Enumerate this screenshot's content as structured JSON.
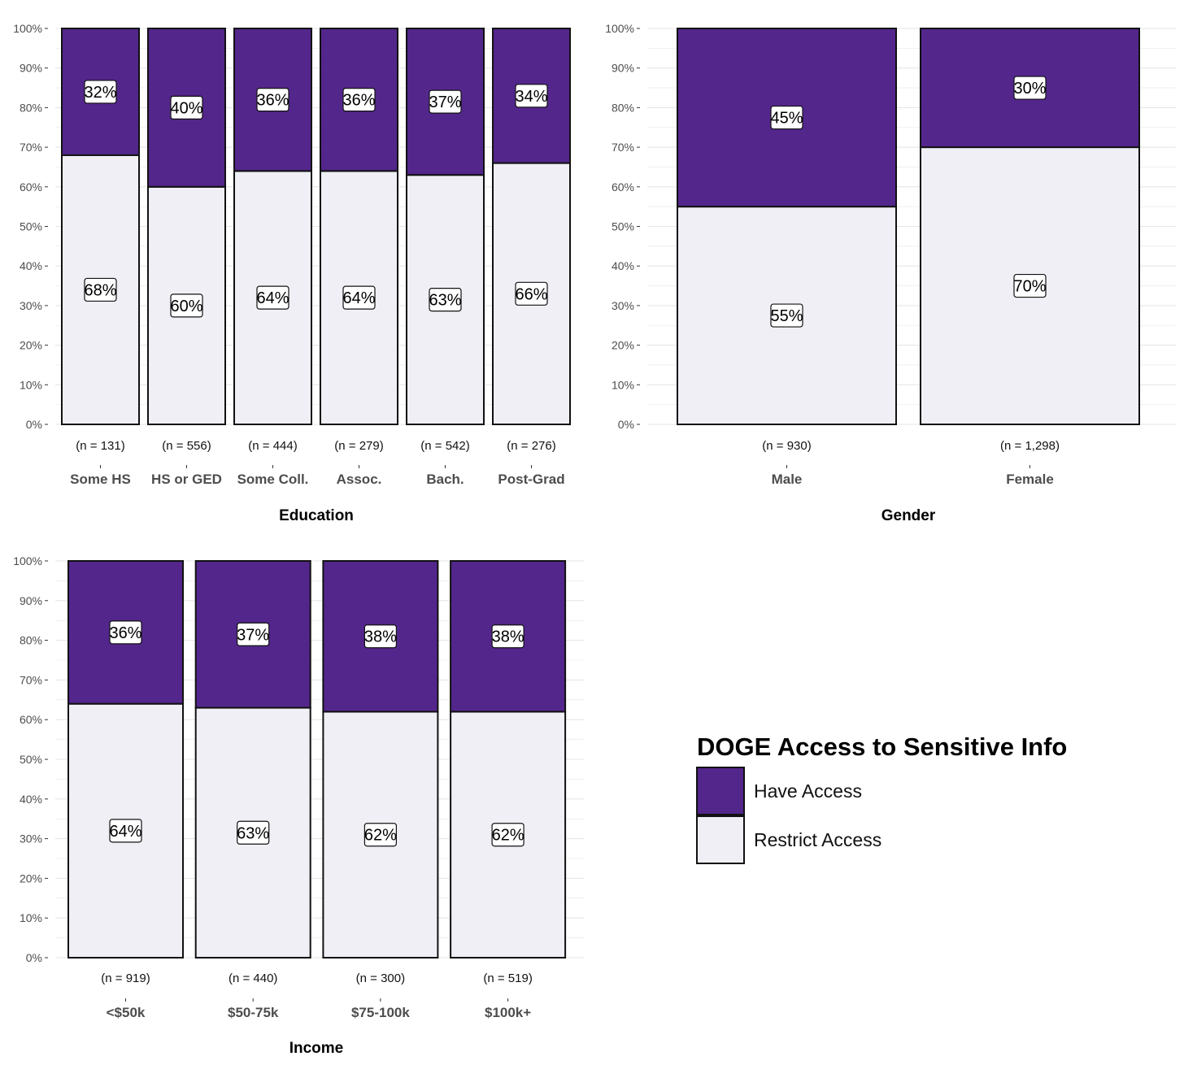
{
  "colors": {
    "have": "#53268c",
    "restrict": "#efeff5",
    "grid": "#e6e6e6",
    "border": "#111111"
  },
  "legend": {
    "title": "DOGE Access to Sensitive Info",
    "items": [
      {
        "label": "Have Access",
        "color": "#53268c"
      },
      {
        "label": "Restrict Access",
        "color": "#efeff5"
      }
    ]
  },
  "chart_data": [
    {
      "type": "bar",
      "stacked": true,
      "xlabel": "Education",
      "ylabel": "",
      "ylim": [
        0,
        100
      ],
      "yticks": [
        "0%",
        "10%",
        "20%",
        "30%",
        "40%",
        "50%",
        "60%",
        "70%",
        "80%",
        "90%",
        "100%"
      ],
      "categories": [
        "Some HS",
        "HS or GED",
        "Some Coll.",
        "Assoc.",
        "Bach.",
        "Post-Grad"
      ],
      "n_labels": [
        "(n = 131)",
        "(n = 556)",
        "(n = 444)",
        "(n = 279)",
        "(n = 542)",
        "(n = 276)"
      ],
      "series": [
        {
          "name": "Restrict Access",
          "values": [
            68,
            60,
            64,
            64,
            63,
            66
          ],
          "labels": [
            "68%",
            "60%",
            "64%",
            "64%",
            "63%",
            "66%"
          ]
        },
        {
          "name": "Have Access",
          "values": [
            32,
            40,
            36,
            36,
            37,
            34
          ],
          "labels": [
            "32%",
            "40%",
            "36%",
            "36%",
            "37%",
            "34%"
          ]
        }
      ]
    },
    {
      "type": "bar",
      "stacked": true,
      "xlabel": "Gender",
      "ylabel": "",
      "ylim": [
        0,
        100
      ],
      "yticks": [
        "0%",
        "10%",
        "20%",
        "30%",
        "40%",
        "50%",
        "60%",
        "70%",
        "80%",
        "90%",
        "100%"
      ],
      "categories": [
        "Male",
        "Female"
      ],
      "n_labels": [
        "(n = 930)",
        "(n = 1,298)"
      ],
      "series": [
        {
          "name": "Restrict Access",
          "values": [
            55,
            70
          ],
          "labels": [
            "55%",
            "70%"
          ]
        },
        {
          "name": "Have Access",
          "values": [
            45,
            30
          ],
          "labels": [
            "45%",
            "30%"
          ]
        }
      ]
    },
    {
      "type": "bar",
      "stacked": true,
      "xlabel": "Income",
      "ylabel": "",
      "ylim": [
        0,
        100
      ],
      "yticks": [
        "0%",
        "10%",
        "20%",
        "30%",
        "40%",
        "50%",
        "60%",
        "70%",
        "80%",
        "90%",
        "100%"
      ],
      "categories": [
        "<$50k",
        "$50-75k",
        "$75-100k",
        "$100k+"
      ],
      "n_labels": [
        "(n = 919)",
        "(n = 440)",
        "(n = 300)",
        "(n = 519)"
      ],
      "series": [
        {
          "name": "Restrict Access",
          "values": [
            64,
            63,
            62,
            62
          ],
          "labels": [
            "64%",
            "63%",
            "62%",
            "62%"
          ]
        },
        {
          "name": "Have Access",
          "values": [
            36,
            37,
            38,
            38
          ],
          "labels": [
            "36%",
            "37%",
            "38%",
            "38%"
          ]
        }
      ]
    }
  ]
}
